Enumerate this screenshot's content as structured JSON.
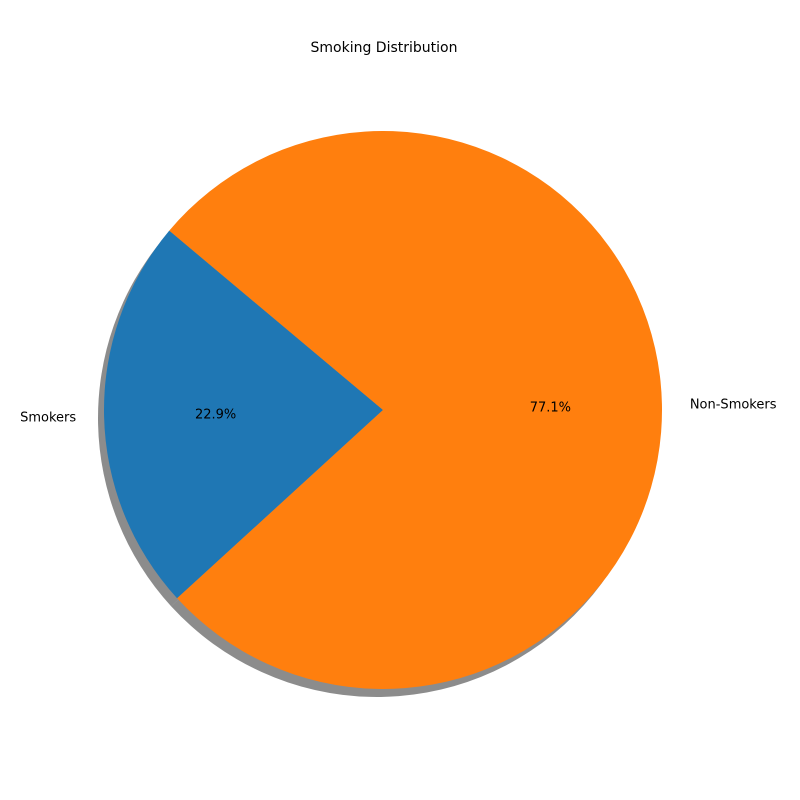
{
  "chart_data": {
    "type": "pie",
    "title": "Smoking Distribution",
    "labels": [
      "Smokers",
      "Non-Smokers"
    ],
    "values": [
      22.9,
      77.1
    ],
    "percent_labels": [
      "22.9%",
      "77.1%"
    ],
    "colors": [
      "#1f77b4",
      "#ff7f0e"
    ],
    "shadow": true,
    "start_angle_degrees": 140
  }
}
